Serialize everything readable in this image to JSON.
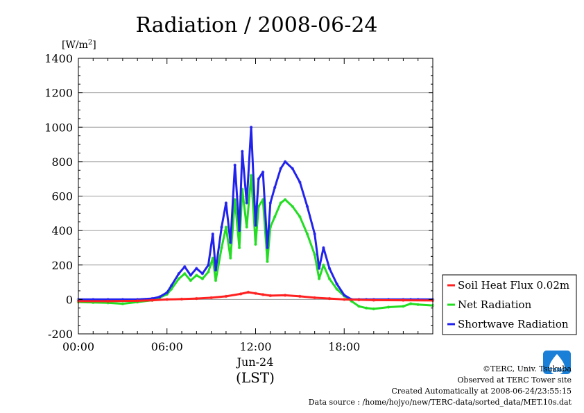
{
  "chart_data": {
    "type": "line",
    "title": "Radiation / 2008-06-24",
    "ylabel_prefix": "[W/m",
    "ylabel_exp": "2",
    "ylabel_suffix": "]",
    "ylim": [
      -200,
      1400
    ],
    "yticks": [
      -200,
      0,
      200,
      400,
      600,
      800,
      1000,
      1200,
      1400
    ],
    "xlim": [
      0,
      24
    ],
    "xticks": [
      0,
      6,
      12,
      18
    ],
    "xtick_labels": [
      "00:00",
      "06:00",
      "12:00",
      "18:00"
    ],
    "date_label": "Jun-24",
    "xlabel": "(LST)",
    "grid": true,
    "legend_position": "right",
    "series": [
      {
        "name": "Soil Heat Flux 0.02m",
        "color": "#ff2020",
        "x": [
          0,
          2,
          4,
          5,
          6,
          7,
          8,
          9,
          10,
          11,
          11.5,
          12,
          12.5,
          13,
          14,
          15,
          16,
          17,
          18,
          19,
          20,
          22,
          24
        ],
        "values": [
          -10,
          -10,
          -8,
          -5,
          0,
          2,
          5,
          10,
          18,
          32,
          42,
          35,
          28,
          22,
          24,
          18,
          10,
          5,
          0,
          -2,
          -4,
          -5,
          -6
        ]
      },
      {
        "name": "Net Radiation",
        "color": "#22dd22",
        "x": [
          0,
          1,
          2,
          3,
          4,
          5,
          5.5,
          6,
          6.3,
          6.8,
          7.2,
          7.6,
          8,
          8.4,
          8.8,
          9.1,
          9.3,
          9.7,
          10,
          10.3,
          10.6,
          10.9,
          11.1,
          11.4,
          11.7,
          12,
          12.2,
          12.5,
          12.8,
          13,
          13.3,
          13.7,
          14,
          14.5,
          15,
          15.5,
          16,
          16.3,
          16.6,
          17,
          17.5,
          18,
          18.5,
          19,
          19.5,
          20,
          21,
          22,
          22.5,
          23,
          24
        ],
        "values": [
          -15,
          -18,
          -20,
          -25,
          -15,
          -5,
          10,
          30,
          60,
          120,
          150,
          110,
          140,
          120,
          160,
          240,
          110,
          300,
          420,
          240,
          580,
          300,
          640,
          420,
          720,
          320,
          540,
          580,
          220,
          420,
          480,
          560,
          580,
          540,
          480,
          380,
          260,
          120,
          200,
          120,
          60,
          20,
          -10,
          -40,
          -50,
          -55,
          -45,
          -40,
          -25,
          -30,
          -35
        ]
      },
      {
        "name": "Shortwave Radiation",
        "color": "#2222ee",
        "x": [
          0,
          1,
          2,
          3,
          4,
          5,
          5.5,
          6,
          6.3,
          6.8,
          7.2,
          7.6,
          8,
          8.4,
          8.8,
          9.1,
          9.3,
          9.7,
          10,
          10.3,
          10.6,
          10.9,
          11.1,
          11.4,
          11.7,
          12,
          12.2,
          12.5,
          12.8,
          13,
          13.3,
          13.7,
          14,
          14.5,
          15,
          15.5,
          16,
          16.3,
          16.6,
          17,
          17.5,
          18,
          18.5,
          19,
          19.5,
          20,
          21,
          22,
          22.5,
          23,
          24
        ],
        "values": [
          0,
          0,
          0,
          0,
          0,
          5,
          15,
          40,
          80,
          150,
          190,
          140,
          180,
          150,
          200,
          380,
          170,
          420,
          560,
          330,
          780,
          400,
          860,
          560,
          1000,
          430,
          700,
          740,
          300,
          560,
          650,
          760,
          800,
          760,
          680,
          540,
          380,
          180,
          300,
          180,
          90,
          25,
          0,
          0,
          0,
          0,
          0,
          0,
          0,
          0,
          0
        ]
      }
    ]
  },
  "credits": {
    "copyright": "©TERC, Univ. Tsukuba",
    "observed": "Observed at TERC Tower site",
    "created": "Created Automatically at 2008-06-24/23:55:15",
    "source": "Data source : /home/hojyo/new/TERC-data/sorted_data/MET.10s.dat"
  },
  "logo": {
    "text": "TERC",
    "color": "#1a7fd6"
  }
}
